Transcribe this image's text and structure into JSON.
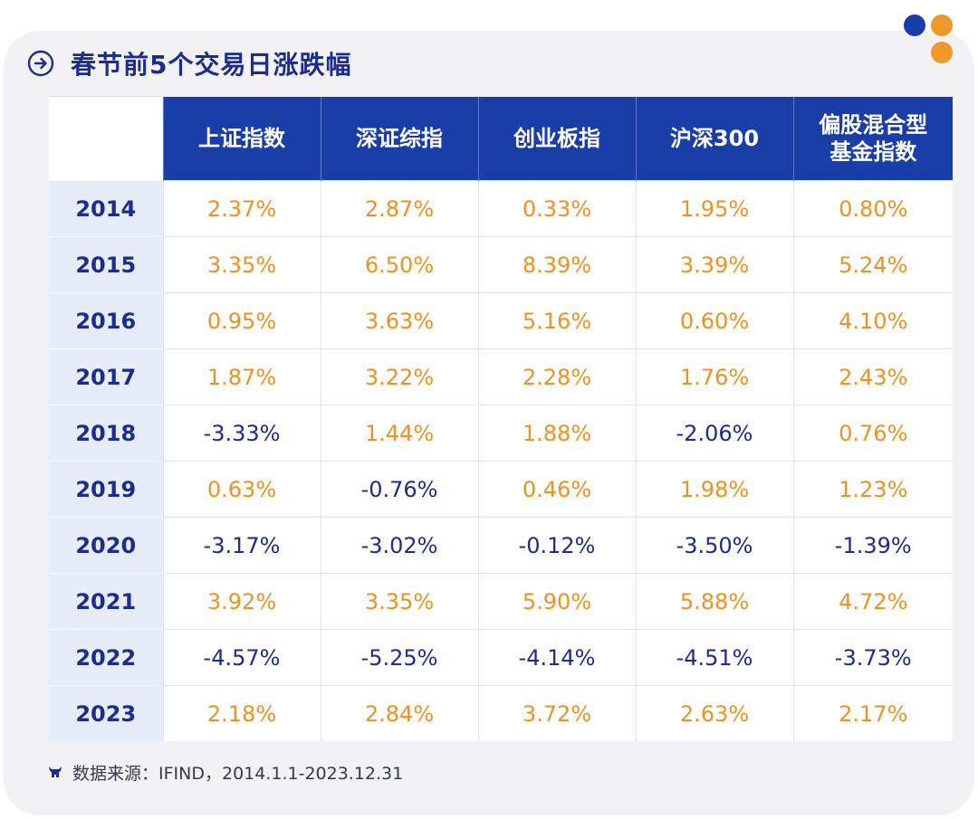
{
  "colors": {
    "accent_blue": "#1a3ea8",
    "title_blue": "#1d2c8f",
    "positive_orange": "#ee9223",
    "year_bg": "#e7edf8",
    "dot_blue": "#1a3ea8",
    "dot_orange": "#f0992a"
  },
  "header": {
    "icon": "arrow-right-circle-icon",
    "title": "春节前5个交易日涨跌幅"
  },
  "chart_data": {
    "type": "table",
    "title": "春节前5个交易日涨跌幅",
    "columns": [
      "上证指数",
      "深证综指",
      "创业板指",
      "沪深300",
      "偏股混合型基金指数"
    ],
    "column_labels": [
      [
        "上证指数"
      ],
      [
        "深证综指"
      ],
      [
        "创业板指"
      ],
      [
        "沪深300"
      ],
      [
        "偏股混合型",
        "基金指数"
      ]
    ],
    "rows": [
      {
        "year": "2014",
        "values": [
          "2.37%",
          "2.87%",
          "0.33%",
          "1.95%",
          "0.80%"
        ]
      },
      {
        "year": "2015",
        "values": [
          "3.35%",
          "6.50%",
          "8.39%",
          "3.39%",
          "5.24%"
        ]
      },
      {
        "year": "2016",
        "values": [
          "0.95%",
          "3.63%",
          "5.16%",
          "0.60%",
          "4.10%"
        ]
      },
      {
        "year": "2017",
        "values": [
          "1.87%",
          "3.22%",
          "2.28%",
          "1.76%",
          "2.43%"
        ]
      },
      {
        "year": "2018",
        "values": [
          "-3.33%",
          "1.44%",
          "1.88%",
          "-2.06%",
          "0.76%"
        ]
      },
      {
        "year": "2019",
        "values": [
          "0.63%",
          "-0.76%",
          "0.46%",
          "1.98%",
          "1.23%"
        ]
      },
      {
        "year": "2020",
        "values": [
          "-3.17%",
          "-3.02%",
          "-0.12%",
          "-3.50%",
          "-1.39%"
        ]
      },
      {
        "year": "2021",
        "values": [
          "3.92%",
          "3.35%",
          "5.90%",
          "5.88%",
          "4.72%"
        ]
      },
      {
        "year": "2022",
        "values": [
          "-4.57%",
          "-5.25%",
          "-4.14%",
          "-4.51%",
          "-3.73%"
        ]
      },
      {
        "year": "2023",
        "values": [
          "2.18%",
          "2.84%",
          "3.72%",
          "2.63%",
          "2.17%"
        ]
      }
    ]
  },
  "footer": {
    "icon": "bull-icon",
    "source": "数据来源：IFIND，2014.1.1-2023.12.31"
  }
}
